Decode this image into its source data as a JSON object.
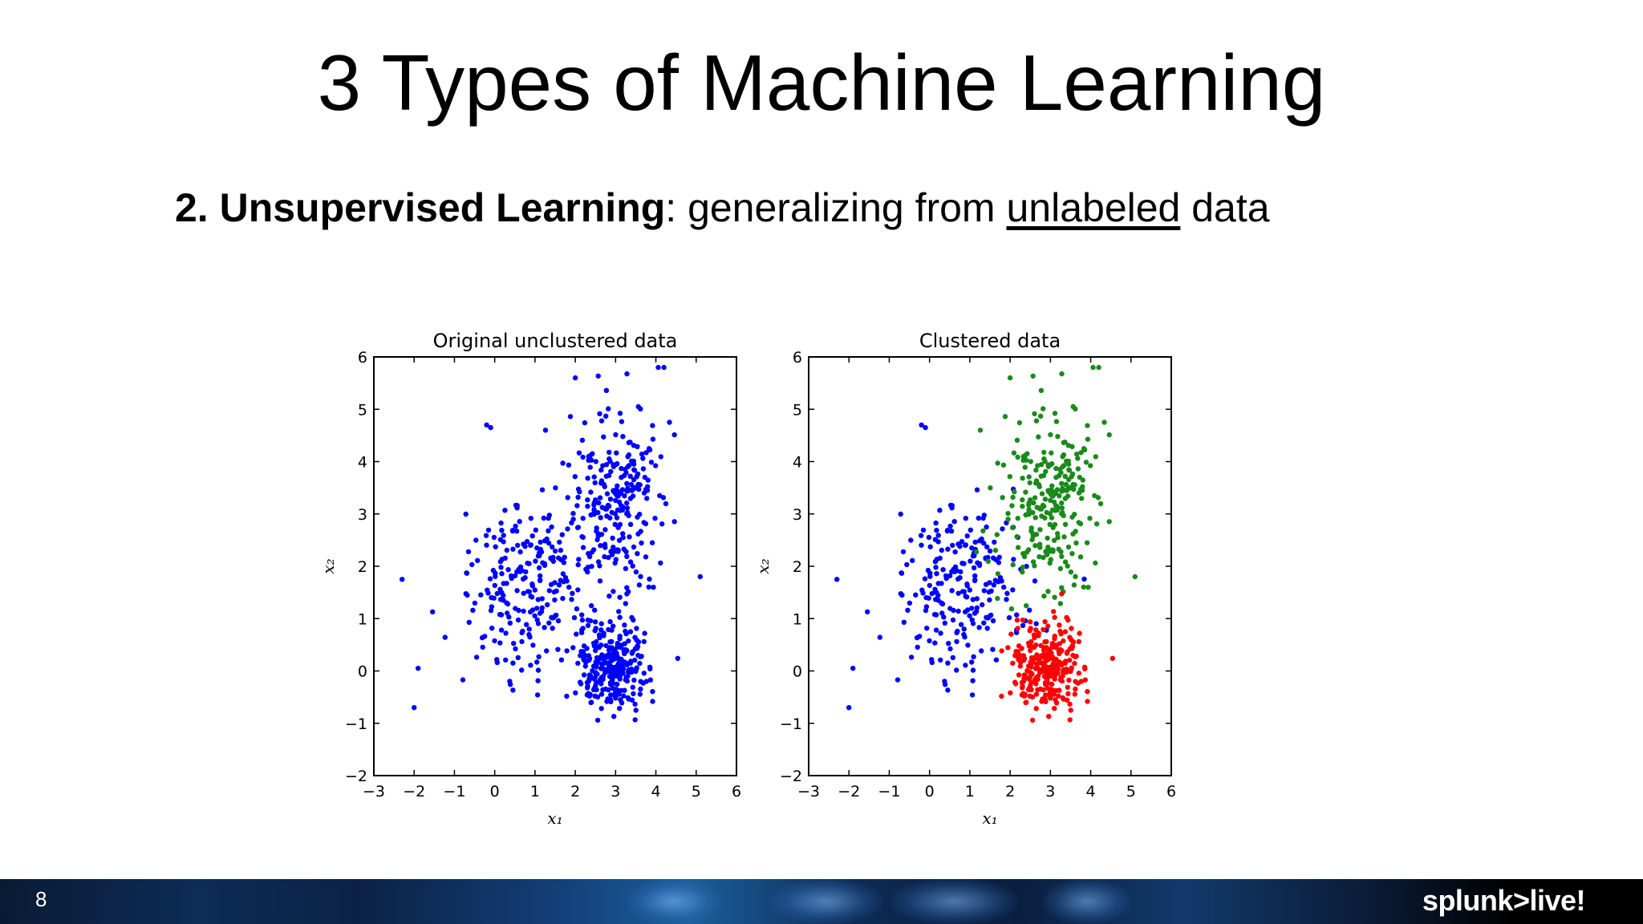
{
  "slide": {
    "title": "3 Types of Machine Learning",
    "subtitle_bold": "2. Unsupervised Learning",
    "subtitle_colon": ":  generalizing from ",
    "subtitle_underlined": "unlabeled",
    "subtitle_tail": " data"
  },
  "footer": {
    "page_number": "8",
    "logo_text": "splunk>live!"
  },
  "chart_data": [
    {
      "type": "scatter",
      "title": "Original unclustered data",
      "xlabel": "x₁",
      "ylabel": "x₂",
      "xlim": [
        -3,
        6
      ],
      "ylim": [
        -2,
        6
      ],
      "xticks": [
        "−3",
        "−2",
        "−1",
        "0",
        "1",
        "2",
        "3",
        "4",
        "5",
        "6"
      ],
      "yticks": [
        "−2",
        "−1",
        "0",
        "1",
        "2",
        "3",
        "4",
        "5",
        "6"
      ],
      "grid": false,
      "series": [
        {
          "color": "#0000ff",
          "clusters": [
            {
              "center": [
                0.8,
                1.5
              ],
              "spread": [
                0.85,
                0.8
              ],
              "count": 230
            },
            {
              "center": [
                2.9,
                3.2
              ],
              "spread": [
                0.65,
                0.9
              ],
              "count": 260
            },
            {
              "center": [
                2.9,
                0.1
              ],
              "spread": [
                0.45,
                0.4
              ],
              "count": 280
            }
          ],
          "extra_points": [
            [
              -2.3,
              1.75
            ],
            [
              -2.0,
              -0.7
            ],
            [
              -0.2,
              4.7
            ],
            [
              -0.1,
              4.65
            ],
            [
              -1.9,
              0.05
            ],
            [
              4.2,
              5.8
            ],
            [
              5.1,
              1.8
            ],
            [
              2.0,
              5.6
            ]
          ]
        }
      ]
    },
    {
      "type": "scatter",
      "title": "Clustered data",
      "xlabel": "x₁",
      "ylabel": "x₂",
      "xlim": [
        -3,
        6
      ],
      "ylim": [
        -2,
        6
      ],
      "xticks": [
        "−3",
        "−2",
        "−1",
        "0",
        "1",
        "2",
        "3",
        "4",
        "5",
        "6"
      ],
      "yticks": [
        "−2",
        "−1",
        "0",
        "1",
        "2",
        "3",
        "4",
        "5",
        "6"
      ],
      "grid": false,
      "series": [
        {
          "color": "#0000ff",
          "clusters": [
            {
              "center": [
                0.8,
                1.5
              ],
              "spread": [
                0.85,
                0.8
              ],
              "count": 230
            }
          ],
          "extra_points": [
            [
              -2.3,
              1.75
            ],
            [
              -2.0,
              -0.7
            ],
            [
              -0.2,
              4.7
            ],
            [
              -0.1,
              4.65
            ],
            [
              -1.9,
              0.05
            ]
          ]
        },
        {
          "color": "#1a8a1a",
          "clusters": [
            {
              "center": [
                2.9,
                3.2
              ],
              "spread": [
                0.65,
                0.9
              ],
              "count": 260
            }
          ],
          "extra_points": [
            [
              4.2,
              5.8
            ],
            [
              5.1,
              1.8
            ],
            [
              2.0,
              5.6
            ]
          ]
        },
        {
          "color": "#ff0000",
          "clusters": [
            {
              "center": [
                2.9,
                0.1
              ],
              "spread": [
                0.45,
                0.4
              ],
              "count": 280
            }
          ],
          "extra_points": []
        }
      ]
    }
  ]
}
